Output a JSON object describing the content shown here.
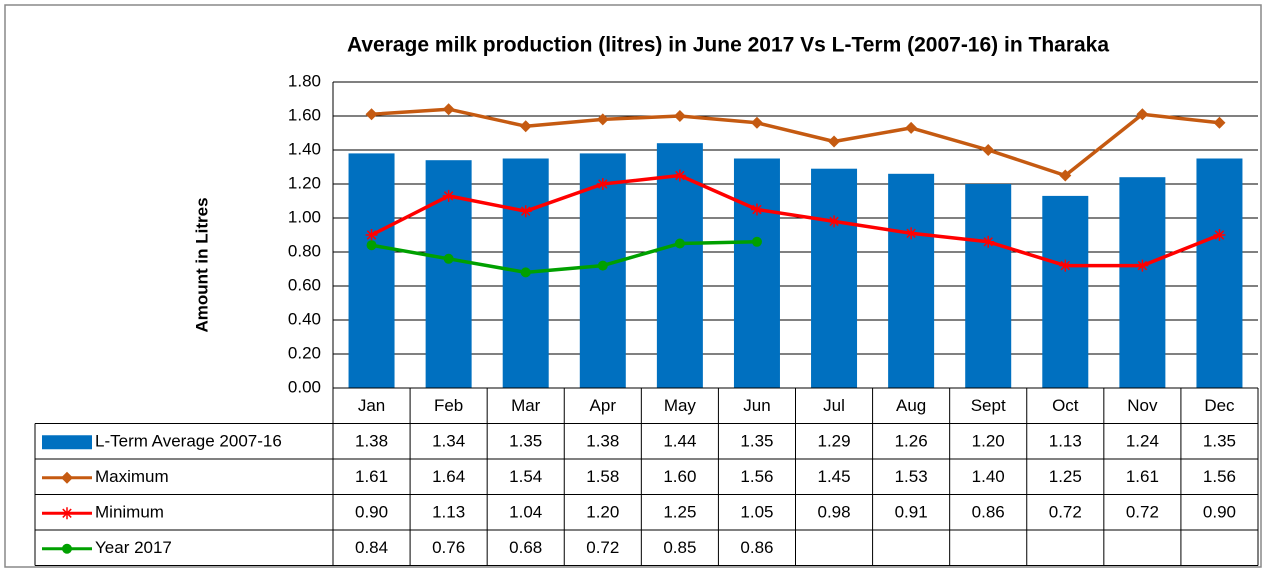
{
  "chart_data": {
    "type": "bar",
    "title": "Average milk production (litres) in June 2017 Vs L-Term (2007-16) in Tharaka",
    "y_label": "Amount in Litres",
    "categories": [
      "Jan",
      "Feb",
      "Mar",
      "Apr",
      "May",
      "Jun",
      "Jul",
      "Aug",
      "Sept",
      "Oct",
      "Nov",
      "Dec"
    ],
    "ylim": [
      0,
      1.8
    ],
    "yticks": [
      {
        "value": 0,
        "label": "0.00"
      },
      {
        "value": 0.2,
        "label": "0.20"
      },
      {
        "value": 0.4,
        "label": "0.40"
      },
      {
        "value": 0.6,
        "label": "0.60"
      },
      {
        "value": 0.8,
        "label": "0.80"
      },
      {
        "value": 1,
        "label": "1.00"
      },
      {
        "value": 1.2,
        "label": "1.20"
      },
      {
        "value": 1.4,
        "label": "1.40"
      },
      {
        "value": 1.6,
        "label": "1.60"
      },
      {
        "value": 1.8,
        "label": "1.80"
      }
    ],
    "grid": true,
    "series": [
      {
        "name": "L-Term Average 2007-16",
        "type": "bar",
        "color": "#0070c0",
        "values": [
          1.38,
          1.34,
          1.35,
          1.38,
          1.44,
          1.35,
          1.29,
          1.26,
          1.2,
          1.13,
          1.24,
          1.35
        ],
        "value_labels": [
          "1.38",
          "1.34",
          "1.35",
          "1.38",
          "1.44",
          "1.35",
          "1.29",
          "1.26",
          "1.20",
          "1.13",
          "1.24",
          "1.35"
        ]
      },
      {
        "name": "Maximum",
        "type": "line",
        "marker": "diamond",
        "color": "#c55a11",
        "values": [
          1.61,
          1.64,
          1.54,
          1.58,
          1.6,
          1.56,
          1.45,
          1.53,
          1.4,
          1.25,
          1.61,
          1.56
        ],
        "value_labels": [
          "1.61",
          "1.64",
          "1.54",
          "1.58",
          "1.60",
          "1.56",
          "1.45",
          "1.53",
          "1.40",
          "1.25",
          "1.61",
          "1.56"
        ]
      },
      {
        "name": "Minimum",
        "type": "line",
        "marker": "star",
        "color": "#ff0000",
        "values": [
          0.9,
          1.13,
          1.04,
          1.2,
          1.25,
          1.05,
          0.98,
          0.91,
          0.86,
          0.72,
          0.72,
          0.9
        ],
        "value_labels": [
          "0.90",
          "1.13",
          "1.04",
          "1.20",
          "1.25",
          "1.05",
          "0.98",
          "0.91",
          "0.86",
          "0.72",
          "0.72",
          "0.90"
        ]
      },
      {
        "name": "Year 2017",
        "type": "line",
        "marker": "circle",
        "color": "#00a000",
        "values": [
          0.84,
          0.76,
          0.68,
          0.72,
          0.85,
          0.86,
          null,
          null,
          null,
          null,
          null,
          null
        ],
        "value_labels": [
          "0.84",
          "0.76",
          "0.68",
          "0.72",
          "0.85",
          "0.86",
          null,
          null,
          null,
          null,
          null,
          null
        ]
      }
    ]
  }
}
